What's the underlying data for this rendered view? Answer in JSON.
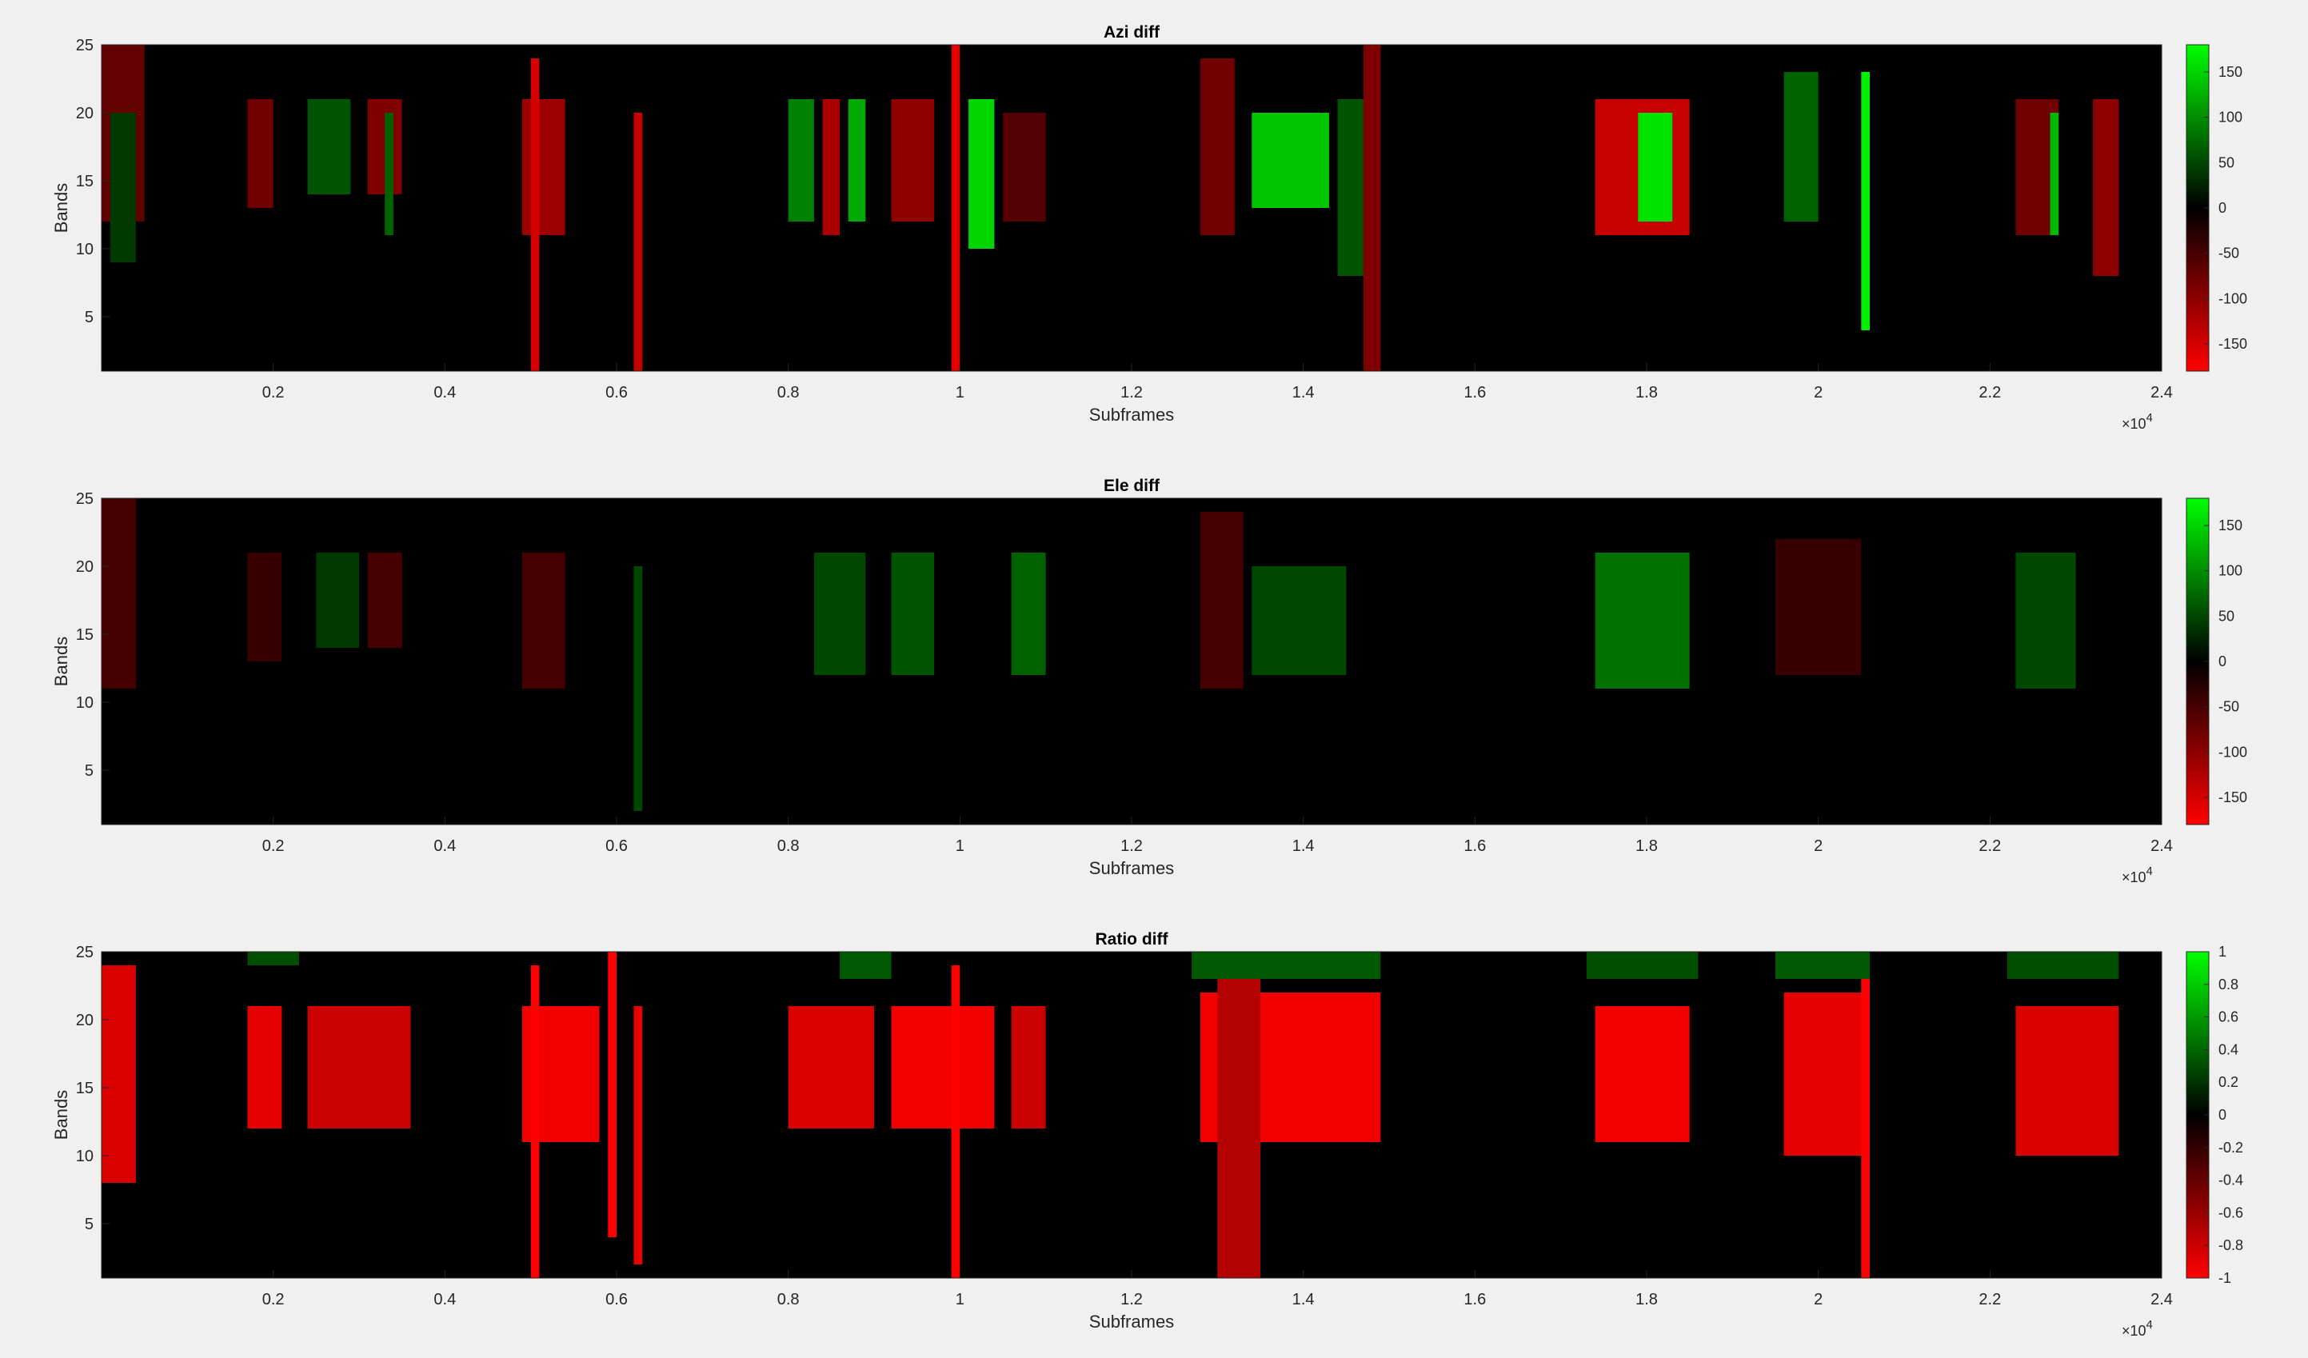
{
  "figure": {
    "background": "#f0f0f0",
    "axis_background": "#000000",
    "tick_color": "#262626"
  },
  "chart_data": [
    {
      "type": "heatmap",
      "title": "Azi diff",
      "xlabel": "Subframes",
      "ylabel": "Bands",
      "x_exponent_label": "×10",
      "x_exponent_power": "4",
      "xlim": [
        0,
        24000
      ],
      "ylim": [
        1,
        25
      ],
      "xticks": [
        2000,
        4000,
        6000,
        8000,
        10000,
        12000,
        14000,
        16000,
        18000,
        20000,
        22000,
        24000
      ],
      "xtick_labels": [
        "0.2",
        "0.4",
        "0.6",
        "0.8",
        "1",
        "1.2",
        "1.4",
        "1.6",
        "1.8",
        "2",
        "2.2",
        "2.4"
      ],
      "yticks": [
        5,
        10,
        15,
        20,
        25
      ],
      "ytick_labels": [
        "5",
        "10",
        "15",
        "20",
        "25"
      ],
      "clim": [
        -180,
        180
      ],
      "colorbar_ticks": [
        150,
        100,
        50,
        0,
        -50,
        -100,
        -150
      ],
      "colorbar_labels": [
        "150",
        "100",
        "50",
        "0",
        "-50",
        "-100",
        "-150"
      ],
      "colormap": {
        "negative": "#ff0000",
        "zero": "#000000",
        "positive": "#00ff00"
      },
      "segments": [
        {
          "x0": 0,
          "x1": 500,
          "y0": 12,
          "y1": 25,
          "v": -70
        },
        {
          "x0": 100,
          "x1": 400,
          "y0": 9,
          "y1": 20,
          "v": 40
        },
        {
          "x0": 1700,
          "x1": 2000,
          "y0": 13,
          "y1": 21,
          "v": -80
        },
        {
          "x0": 2400,
          "x1": 2900,
          "y0": 14,
          "y1": 21,
          "v": 60
        },
        {
          "x0": 3100,
          "x1": 3500,
          "y0": 14,
          "y1": 21,
          "v": -90
        },
        {
          "x0": 3300,
          "x1": 3400,
          "y0": 11,
          "y1": 20,
          "v": 70
        },
        {
          "x0": 4900,
          "x1": 5400,
          "y0": 11,
          "y1": 21,
          "v": -110
        },
        {
          "x0": 5000,
          "x1": 5100,
          "y0": 1,
          "y1": 24,
          "v": -150
        },
        {
          "x0": 6200,
          "x1": 6300,
          "y0": 1,
          "y1": 20,
          "v": -140
        },
        {
          "x0": 8000,
          "x1": 8300,
          "y0": 12,
          "y1": 21,
          "v": 90
        },
        {
          "x0": 8400,
          "x1": 8600,
          "y0": 11,
          "y1": 21,
          "v": -120
        },
        {
          "x0": 8700,
          "x1": 8900,
          "y0": 12,
          "y1": 21,
          "v": 120
        },
        {
          "x0": 9200,
          "x1": 9700,
          "y0": 12,
          "y1": 21,
          "v": -100
        },
        {
          "x0": 9900,
          "x1": 10000,
          "y0": 1,
          "y1": 25,
          "v": -160
        },
        {
          "x0": 10100,
          "x1": 10400,
          "y0": 10,
          "y1": 21,
          "v": 150
        },
        {
          "x0": 10500,
          "x1": 11000,
          "y0": 12,
          "y1": 20,
          "v": -60
        },
        {
          "x0": 12800,
          "x1": 13200,
          "y0": 11,
          "y1": 24,
          "v": -80
        },
        {
          "x0": 13400,
          "x1": 14300,
          "y0": 13,
          "y1": 20,
          "v": 140
        },
        {
          "x0": 14400,
          "x1": 14800,
          "y0": 8,
          "y1": 21,
          "v": 60
        },
        {
          "x0": 14700,
          "x1": 14900,
          "y0": 1,
          "y1": 25,
          "v": -90
        },
        {
          "x0": 17400,
          "x1": 18500,
          "y0": 11,
          "y1": 21,
          "v": -140
        },
        {
          "x0": 17900,
          "x1": 18300,
          "y0": 12,
          "y1": 20,
          "v": 160
        },
        {
          "x0": 19600,
          "x1": 20000,
          "y0": 12,
          "y1": 23,
          "v": 70
        },
        {
          "x0": 20500,
          "x1": 20600,
          "y0": 4,
          "y1": 23,
          "v": 170
        },
        {
          "x0": 22300,
          "x1": 22800,
          "y0": 11,
          "y1": 21,
          "v": -80
        },
        {
          "x0": 22700,
          "x1": 22800,
          "y0": 11,
          "y1": 20,
          "v": 130
        },
        {
          "x0": 23200,
          "x1": 23500,
          "y0": 8,
          "y1": 21,
          "v": -100
        }
      ]
    },
    {
      "type": "heatmap",
      "title": "Ele diff",
      "xlabel": "Subframes",
      "ylabel": "Bands",
      "x_exponent_label": "×10",
      "x_exponent_power": "4",
      "xlim": [
        0,
        24000
      ],
      "ylim": [
        1,
        25
      ],
      "xticks": [
        2000,
        4000,
        6000,
        8000,
        10000,
        12000,
        14000,
        16000,
        18000,
        20000,
        22000,
        24000
      ],
      "xtick_labels": [
        "0.2",
        "0.4",
        "0.6",
        "0.8",
        "1",
        "1.2",
        "1.4",
        "1.6",
        "1.8",
        "2",
        "2.2",
        "2.4"
      ],
      "yticks": [
        5,
        10,
        15,
        20,
        25
      ],
      "ytick_labels": [
        "5",
        "10",
        "15",
        "20",
        "25"
      ],
      "clim": [
        -180,
        180
      ],
      "colorbar_ticks": [
        150,
        100,
        50,
        0,
        -50,
        -100,
        -150
      ],
      "colorbar_labels": [
        "150",
        "100",
        "50",
        "0",
        "-50",
        "-100",
        "-150"
      ],
      "colormap": {
        "negative": "#ff0000",
        "zero": "#000000",
        "positive": "#00ff00"
      },
      "segments": [
        {
          "x0": 0,
          "x1": 400,
          "y0": 11,
          "y1": 25,
          "v": -50
        },
        {
          "x0": 1700,
          "x1": 2100,
          "y0": 13,
          "y1": 21,
          "v": -40
        },
        {
          "x0": 2500,
          "x1": 3000,
          "y0": 14,
          "y1": 21,
          "v": 40
        },
        {
          "x0": 3100,
          "x1": 3500,
          "y0": 14,
          "y1": 21,
          "v": -50
        },
        {
          "x0": 4900,
          "x1": 5400,
          "y0": 11,
          "y1": 21,
          "v": -50
        },
        {
          "x0": 6200,
          "x1": 6300,
          "y0": 2,
          "y1": 20,
          "v": 50
        },
        {
          "x0": 8300,
          "x1": 8900,
          "y0": 12,
          "y1": 21,
          "v": 50
        },
        {
          "x0": 9200,
          "x1": 9700,
          "y0": 12,
          "y1": 21,
          "v": 60
        },
        {
          "x0": 10600,
          "x1": 11000,
          "y0": 12,
          "y1": 21,
          "v": 70
        },
        {
          "x0": 12800,
          "x1": 13300,
          "y0": 11,
          "y1": 24,
          "v": -50
        },
        {
          "x0": 13400,
          "x1": 14500,
          "y0": 12,
          "y1": 20,
          "v": 50
        },
        {
          "x0": 17400,
          "x1": 18500,
          "y0": 11,
          "y1": 21,
          "v": 80
        },
        {
          "x0": 19500,
          "x1": 20500,
          "y0": 12,
          "y1": 22,
          "v": -40
        },
        {
          "x0": 22300,
          "x1": 23000,
          "y0": 11,
          "y1": 21,
          "v": 50
        }
      ]
    },
    {
      "type": "heatmap",
      "title": "Ratio diff",
      "xlabel": "Subframes",
      "ylabel": "Bands",
      "x_exponent_label": "×10",
      "x_exponent_power": "4",
      "xlim": [
        0,
        24000
      ],
      "ylim": [
        1,
        25
      ],
      "xticks": [
        2000,
        4000,
        6000,
        8000,
        10000,
        12000,
        14000,
        16000,
        18000,
        20000,
        22000,
        24000
      ],
      "xtick_labels": [
        "0.2",
        "0.4",
        "0.6",
        "0.8",
        "1",
        "1.2",
        "1.4",
        "1.6",
        "1.8",
        "2",
        "2.2",
        "2.4"
      ],
      "yticks": [
        5,
        10,
        15,
        20,
        25
      ],
      "ytick_labels": [
        "5",
        "10",
        "15",
        "20",
        "25"
      ],
      "clim": [
        -1,
        1
      ],
      "colorbar_ticks": [
        1,
        0.8,
        0.6,
        0.4,
        0.2,
        0,
        -0.2,
        -0.4,
        -0.6,
        -0.8,
        -1
      ],
      "colorbar_labels": [
        "1",
        "0.8",
        "0.6",
        "0.4",
        "0.2",
        "0",
        "-0.2",
        "-0.4",
        "-0.6",
        "-0.8",
        "-1"
      ],
      "colormap": {
        "negative": "#ff0000",
        "zero": "#000000",
        "positive": "#00ff00"
      },
      "segments": [
        {
          "x0": 0,
          "x1": 400,
          "y0": 8,
          "y1": 24,
          "v": -0.85
        },
        {
          "x0": 1700,
          "x1": 2100,
          "y0": 12,
          "y1": 21,
          "v": -0.9
        },
        {
          "x0": 2400,
          "x1": 3600,
          "y0": 12,
          "y1": 21,
          "v": -0.8
        },
        {
          "x0": 4900,
          "x1": 5800,
          "y0": 11,
          "y1": 21,
          "v": -0.95
        },
        {
          "x0": 5000,
          "x1": 5100,
          "y0": 1,
          "y1": 24,
          "v": -1
        },
        {
          "x0": 5900,
          "x1": 6000,
          "y0": 4,
          "y1": 25,
          "v": -1
        },
        {
          "x0": 6200,
          "x1": 6300,
          "y0": 2,
          "y1": 21,
          "v": -0.9
        },
        {
          "x0": 8000,
          "x1": 9000,
          "y0": 12,
          "y1": 21,
          "v": -0.85
        },
        {
          "x0": 9200,
          "x1": 10400,
          "y0": 12,
          "y1": 21,
          "v": -0.95
        },
        {
          "x0": 9900,
          "x1": 10000,
          "y0": 1,
          "y1": 24,
          "v": -1
        },
        {
          "x0": 10600,
          "x1": 11000,
          "y0": 12,
          "y1": 21,
          "v": -0.8
        },
        {
          "x0": 12800,
          "x1": 14900,
          "y0": 11,
          "y1": 22,
          "v": -0.95
        },
        {
          "x0": 13000,
          "x1": 13500,
          "y0": 1,
          "y1": 25,
          "v": -0.7
        },
        {
          "x0": 17400,
          "x1": 18500,
          "y0": 11,
          "y1": 21,
          "v": -0.95
        },
        {
          "x0": 19600,
          "x1": 20600,
          "y0": 10,
          "y1": 22,
          "v": -0.9
        },
        {
          "x0": 20500,
          "x1": 20600,
          "y0": 1,
          "y1": 23,
          "v": -1
        },
        {
          "x0": 22300,
          "x1": 23500,
          "y0": 10,
          "y1": 21,
          "v": -0.85
        },
        {
          "x0": 1700,
          "x1": 2300,
          "y0": 24,
          "y1": 25,
          "v": 0.3
        },
        {
          "x0": 8600,
          "x1": 9200,
          "y0": 23,
          "y1": 25,
          "v": 0.35
        },
        {
          "x0": 12700,
          "x1": 14900,
          "y0": 23,
          "y1": 25,
          "v": 0.35
        },
        {
          "x0": 17300,
          "x1": 18600,
          "y0": 23,
          "y1": 25,
          "v": 0.3
        },
        {
          "x0": 19500,
          "x1": 20600,
          "y0": 23,
          "y1": 25,
          "v": 0.35
        },
        {
          "x0": 22200,
          "x1": 23500,
          "y0": 23,
          "y1": 25,
          "v": 0.3
        }
      ]
    }
  ]
}
